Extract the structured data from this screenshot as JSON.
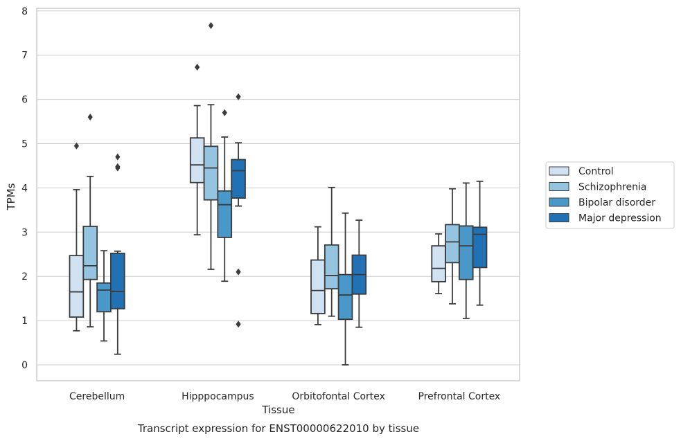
{
  "caption": "Transcript expression for ENST00000622010 by tissue",
  "chart_data": {
    "type": "box",
    "xlabel": "Tissue",
    "ylabel": "TPMs",
    "ylim": [
      -0.35,
      8.05
    ],
    "yticks": [
      0,
      1,
      2,
      3,
      4,
      5,
      6,
      7,
      8
    ],
    "grid": "horizontal",
    "legend_position": "right",
    "categories": [
      "Cerebellum",
      "Hipppocampus",
      "Orbitofontal Cortex",
      "Prefrontal Cortex"
    ],
    "series": [
      {
        "name": "Control",
        "color": "#d0e1f2",
        "boxes": [
          {
            "whisker_low": 0.77,
            "q1": 1.08,
            "median": 1.65,
            "q3": 2.47,
            "whisker_high": 3.96,
            "outliers": [
              4.95
            ]
          },
          {
            "whisker_low": 2.94,
            "q1": 4.12,
            "median": 4.52,
            "q3": 5.13,
            "whisker_high": 5.86,
            "outliers": [
              6.73
            ]
          },
          {
            "whisker_low": 0.91,
            "q1": 1.16,
            "median": 1.68,
            "q3": 2.37,
            "whisker_high": 3.12,
            "outliers": []
          },
          {
            "whisker_low": 1.61,
            "q1": 1.88,
            "median": 2.18,
            "q3": 2.69,
            "whisker_high": 2.96,
            "outliers": []
          }
        ]
      },
      {
        "name": "Schizophrenia",
        "color": "#94c4df",
        "boxes": [
          {
            "whisker_low": 0.86,
            "q1": 1.93,
            "median": 2.24,
            "q3": 3.13,
            "whisker_high": 4.26,
            "outliers": [
              5.6
            ]
          },
          {
            "whisker_low": 2.16,
            "q1": 3.73,
            "median": 4.45,
            "q3": 4.94,
            "whisker_high": 5.88,
            "outliers": [
              7.67
            ]
          },
          {
            "whisker_low": 1.1,
            "q1": 1.72,
            "median": 2.02,
            "q3": 2.71,
            "whisker_high": 4.01,
            "outliers": []
          },
          {
            "whisker_low": 1.38,
            "q1": 2.31,
            "median": 2.78,
            "q3": 3.17,
            "whisker_high": 3.98,
            "outliers": []
          }
        ]
      },
      {
        "name": "Bipolar disorder",
        "color": "#4a98c9",
        "boxes": [
          {
            "whisker_low": 0.54,
            "q1": 1.2,
            "median": 1.69,
            "q3": 1.85,
            "whisker_high": 2.58,
            "outliers": []
          },
          {
            "whisker_low": 1.89,
            "q1": 2.88,
            "median": 3.62,
            "q3": 3.93,
            "whisker_high": 5.15,
            "outliers": [
              5.7
            ]
          },
          {
            "whisker_low": 0.0,
            "q1": 1.03,
            "median": 1.58,
            "q3": 2.04,
            "whisker_high": 3.43,
            "outliers": []
          },
          {
            "whisker_low": 1.05,
            "q1": 1.93,
            "median": 2.69,
            "q3": 3.14,
            "whisker_high": 4.11,
            "outliers": []
          }
        ]
      },
      {
        "name": "Major depression",
        "color": "#2171b5",
        "boxes": [
          {
            "whisker_low": 0.24,
            "q1": 1.27,
            "median": 1.66,
            "q3": 2.52,
            "whisker_high": 2.57,
            "outliers": [
              4.45,
              4.48,
              4.7
            ]
          },
          {
            "whisker_low": 3.59,
            "q1": 3.77,
            "median": 4.39,
            "q3": 4.64,
            "whisker_high": 5.02,
            "outliers": [
              0.92,
              2.1,
              6.06
            ]
          },
          {
            "whisker_low": 0.85,
            "q1": 1.6,
            "median": 2.04,
            "q3": 2.48,
            "whisker_high": 3.27,
            "outliers": []
          },
          {
            "whisker_low": 1.35,
            "q1": 2.2,
            "median": 2.95,
            "q3": 3.11,
            "whisker_high": 4.15,
            "outliers": []
          }
        ]
      }
    ]
  }
}
